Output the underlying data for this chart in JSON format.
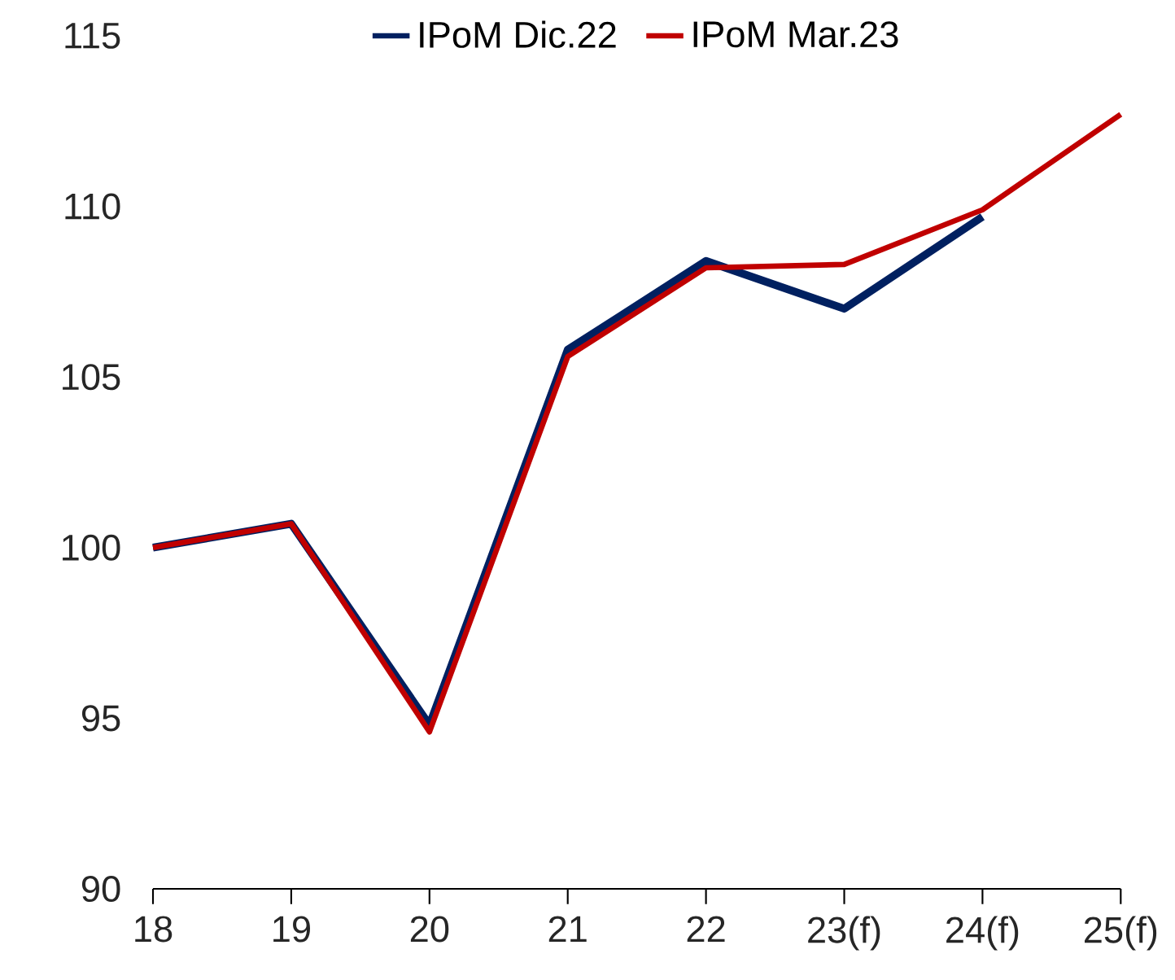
{
  "chart_data": {
    "type": "line",
    "categories": [
      "18",
      "19",
      "20",
      "21",
      "22",
      "23(f)",
      "24(f)",
      "25(f)"
    ],
    "series": [
      {
        "name": "IPoM Dic.22",
        "color": "#002060",
        "values": [
          100,
          100.7,
          94.8,
          105.8,
          108.4,
          107.0,
          109.7,
          null
        ]
      },
      {
        "name": "IPoM Mar.23",
        "color": "#c00000",
        "values": [
          100,
          100.7,
          94.6,
          105.6,
          108.2,
          108.3,
          109.9,
          112.7
        ]
      }
    ],
    "ylim": [
      90,
      115
    ],
    "yticks": [
      90,
      95,
      100,
      105,
      110,
      115
    ],
    "grid": false,
    "legend": "top",
    "marker": "none",
    "line_style": "solid"
  }
}
